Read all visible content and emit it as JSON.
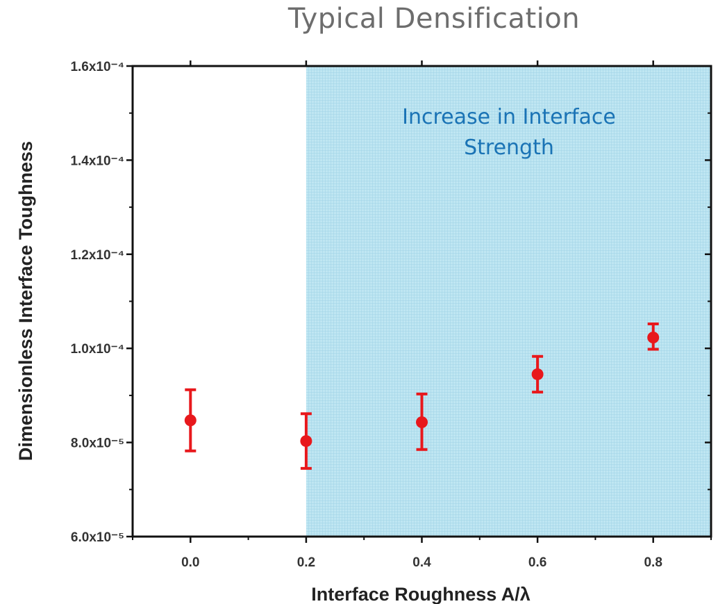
{
  "slide_title": "Typical Densification",
  "chart_data": {
    "type": "scatter",
    "title": "Typical Densification",
    "xlabel": "Interface Roughness A/λ",
    "ylabel": "Dimensionless Interface Toughness",
    "xlim": [
      -0.1,
      0.9
    ],
    "ylim": [
      0.6,
      1.6
    ],
    "x_ticks": [
      "0.0",
      "0.2",
      "0.4",
      "0.6",
      "0.8"
    ],
    "y_ticks": [
      "6.0x10⁻⁵",
      "8.0x10⁻⁵",
      "1.0x10⁻⁴",
      "1.2x10⁻⁴",
      "1.4x10⁻⁴",
      "1.6x10⁻⁴"
    ],
    "grid": false,
    "shaded_region": {
      "x_from": 0.2,
      "x_to": 0.9,
      "color": "#bfe6f2"
    },
    "annotation": [
      "Increase in Interface",
      "Strength"
    ],
    "series": [
      {
        "color": "#e8181c",
        "points": [
          {
            "x": 0.0,
            "y": 0.847,
            "err_low": 0.782,
            "err_high": 0.912
          },
          {
            "x": 0.2,
            "y": 0.803,
            "err_low": 0.745,
            "err_high": 0.861
          },
          {
            "x": 0.4,
            "y": 0.843,
            "err_low": 0.785,
            "err_high": 0.903
          },
          {
            "x": 0.6,
            "y": 0.945,
            "err_low": 0.907,
            "err_high": 0.983
          },
          {
            "x": 0.8,
            "y": 1.023,
            "err_low": 0.998,
            "err_high": 1.052
          }
        ]
      }
    ]
  }
}
